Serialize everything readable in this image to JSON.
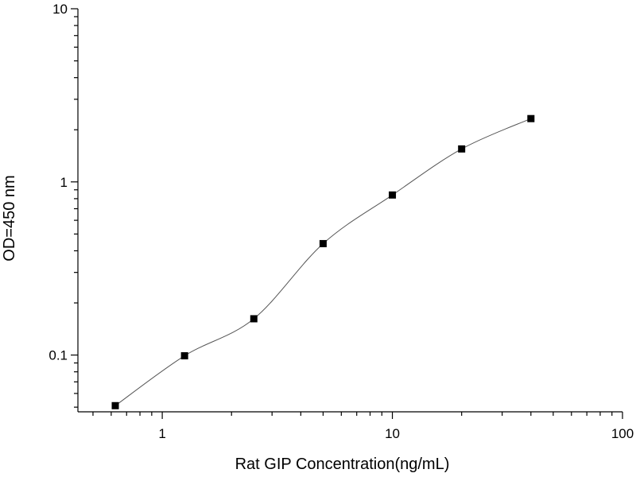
{
  "chart_data": {
    "type": "scatter",
    "xlabel": "Rat GIP Concentration(ng/mL)",
    "ylabel": "OD=450 nm",
    "xscale": "log",
    "yscale": "log",
    "xlim": [
      0.43,
      100
    ],
    "ylim": [
      0.047,
      10
    ],
    "x_ticks": [
      {
        "value": 1,
        "label": "1"
      },
      {
        "value": 10,
        "label": "10"
      },
      {
        "value": 100,
        "label": "100"
      }
    ],
    "y_ticks": [
      {
        "value": 0.1,
        "label": "0.1"
      },
      {
        "value": 1,
        "label": "1"
      },
      {
        "value": 10,
        "label": "10"
      }
    ],
    "grid": false,
    "marker": "square",
    "line_color": "#555555",
    "marker_color": "#000000",
    "series": [
      {
        "x": [
          0.625,
          1.25,
          2.5,
          5,
          10,
          20,
          40
        ],
        "y": [
          0.051,
          0.099,
          0.162,
          0.44,
          0.84,
          1.55,
          2.32
        ]
      }
    ]
  }
}
